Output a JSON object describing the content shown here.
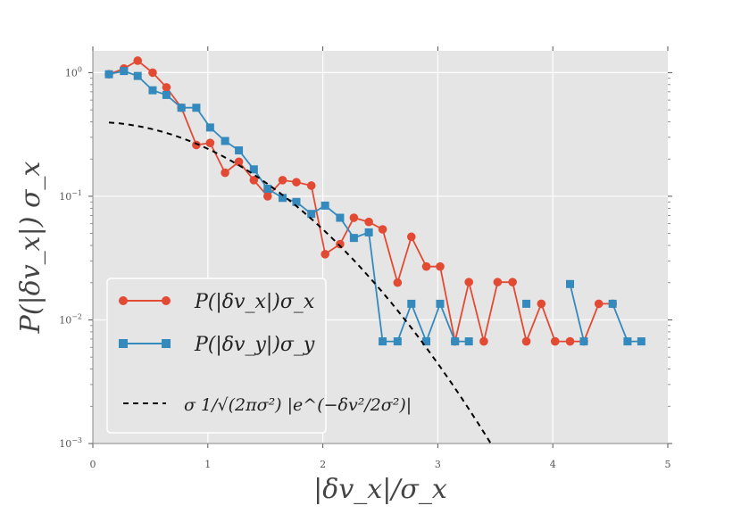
{
  "chart_data": {
    "type": "line",
    "title": "",
    "xlabel": "|δv_x|/σ_x",
    "ylabel": "P(|δv_x|) σ_x",
    "xlim": [
      0,
      5
    ],
    "ylim": [
      0.001,
      1.5
    ],
    "yscale": "log",
    "grid": true,
    "legend_position": "lower-left",
    "x_ticks": [
      0,
      1,
      2,
      3,
      4,
      5
    ],
    "x_tick_labels": [
      "0",
      "1",
      "2",
      "3",
      "4",
      "5"
    ],
    "y_ticks": [
      0.001,
      0.01,
      0.1,
      1
    ],
    "y_tick_labels": [
      {
        "base": "10",
        "exp": "−3"
      },
      {
        "base": "10",
        "exp": "−2"
      },
      {
        "base": "10",
        "exp": "−1"
      },
      {
        "base": "10",
        "exp": "0"
      }
    ],
    "series": [
      {
        "name": "P(|δv_x|)σ_x",
        "color": "#e24a33",
        "marker": "circle",
        "segments": [
          [
            [
              0.14,
              0.97
            ],
            [
              0.27,
              1.08
            ],
            [
              0.39,
              1.25
            ],
            [
              0.52,
              1.0
            ],
            [
              0.64,
              0.76
            ],
            [
              0.77,
              0.52
            ],
            [
              0.9,
              0.26
            ],
            [
              1.02,
              0.27
            ],
            [
              1.15,
              0.155
            ],
            [
              1.27,
              0.19
            ],
            [
              1.4,
              0.135
            ],
            [
              1.52,
              0.1
            ],
            [
              1.65,
              0.135
            ],
            [
              1.77,
              0.13
            ],
            [
              1.9,
              0.122
            ],
            [
              2.02,
              0.034
            ],
            [
              2.15,
              0.041
            ],
            [
              2.27,
              0.067
            ],
            [
              2.4,
              0.062
            ],
            [
              2.52,
              0.054
            ],
            [
              2.65,
              0.02
            ],
            [
              2.77,
              0.047
            ],
            [
              2.9,
              0.027
            ],
            [
              3.02,
              0.027
            ],
            [
              3.15,
              0.0067
            ],
            [
              3.27,
              0.0202
            ],
            [
              3.4,
              0.0067
            ],
            [
              3.52,
              0.0202
            ],
            [
              3.65,
              0.0202
            ],
            [
              3.77,
              0.0067
            ],
            [
              3.9,
              0.0135
            ],
            [
              4.02,
              0.0067
            ],
            [
              4.15,
              0.0067
            ],
            [
              4.27,
              0.0067
            ],
            [
              4.4,
              0.0135
            ],
            [
              4.52,
              0.0135
            ]
          ]
        ]
      },
      {
        "name": "P(|δv_y|)σ_y",
        "color": "#348abd",
        "marker": "square",
        "segments": [
          [
            [
              0.14,
              0.97
            ],
            [
              0.27,
              1.03
            ],
            [
              0.39,
              0.94
            ],
            [
              0.52,
              0.72
            ],
            [
              0.64,
              0.66
            ],
            [
              0.77,
              0.52
            ],
            [
              0.9,
              0.52
            ],
            [
              1.02,
              0.36
            ],
            [
              1.15,
              0.28
            ],
            [
              1.27,
              0.235
            ],
            [
              1.4,
              0.165
            ],
            [
              1.52,
              0.115
            ],
            [
              1.65,
              0.097
            ],
            [
              1.77,
              0.09
            ],
            [
              1.9,
              0.072
            ],
            [
              2.02,
              0.084
            ],
            [
              2.15,
              0.067
            ],
            [
              2.27,
              0.046
            ],
            [
              2.4,
              0.051
            ],
            [
              2.52,
              0.0067
            ],
            [
              2.65,
              0.0067
            ],
            [
              2.77,
              0.0135
            ],
            [
              2.9,
              0.0067
            ],
            [
              3.02,
              0.0135
            ],
            [
              3.15,
              0.0067
            ],
            [
              3.27,
              0.0067
            ]
          ],
          [
            [
              3.77,
              0.0135
            ]
          ],
          [
            [
              4.15,
              0.0195
            ],
            [
              4.27,
              0.0067
            ]
          ],
          [
            [
              4.52,
              0.0135
            ],
            [
              4.65,
              0.0067
            ],
            [
              4.77,
              0.0067
            ]
          ]
        ]
      },
      {
        "name": "Gaussian",
        "color": "#000000",
        "line_style": "dashed",
        "function": "gaussian",
        "sigma": 1.0,
        "x_range": [
          0.14,
          3.5
        ]
      }
    ],
    "legend": [
      {
        "series": 0,
        "label": "P(|δv_x|)σ_x"
      },
      {
        "series": 1,
        "label": "P(|δv_y|)σ_y"
      },
      {
        "series": 2,
        "label": "σ 1/√(2πσ²) |e^(−δv²/2σ²)|"
      }
    ]
  }
}
